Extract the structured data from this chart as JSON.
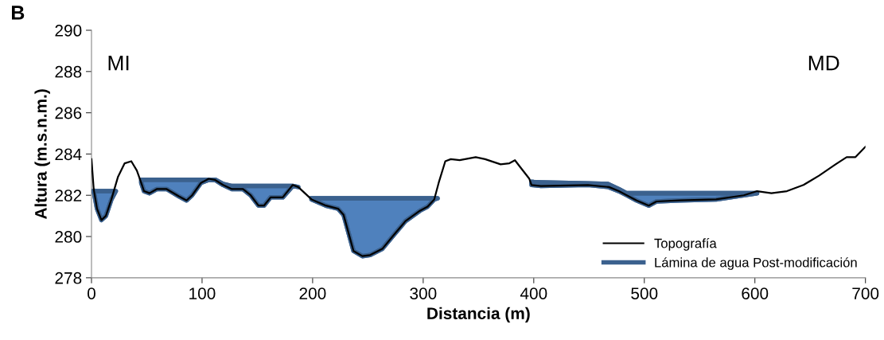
{
  "chart_data": {
    "type": "line",
    "xlabel": "Distancia (m)",
    "ylabel": "Altura (m.s.n.m.)",
    "xlim": [
      0,
      700
    ],
    "xticks": [
      0,
      100,
      200,
      300,
      400,
      500,
      600,
      700
    ],
    "ylim": [
      278,
      290
    ],
    "yticks": [
      278,
      280,
      282,
      284,
      286,
      288,
      290
    ],
    "grid": false,
    "legend": "bottom right",
    "marker": "none",
    "line_style": "solid",
    "annotations": [
      "B",
      "MI",
      "MD"
    ],
    "series": [
      {
        "name": "Topografía",
        "color": "#000000",
        "x": [
          0,
          2,
          5,
          9,
          13,
          18,
          24,
          30,
          36,
          41,
          45,
          47.5,
          52.5,
          59,
          68,
          79,
          86,
          91,
          99,
          106,
          111.5,
          119,
          127,
          137,
          144,
          151,
          156,
          162,
          173,
          182,
          187,
          199,
          212,
          223,
          228,
          237,
          245,
          252,
          263,
          273,
          284,
          297,
          304,
          310,
          314,
          320,
          325,
          333,
          347.5,
          356,
          370,
          378,
          383,
          388,
          396,
          398,
          406.5,
          449,
          468,
          477,
          493,
          504,
          511,
          532,
          565,
          590,
          602,
          615,
          629,
          644,
          658,
          673,
          683,
          691,
          700
        ],
        "values": [
          283.75,
          282.3,
          281.35,
          280.8,
          281.0,
          281.8,
          282.9,
          283.55,
          283.65,
          283.2,
          282.6,
          282.2,
          282.1,
          282.3,
          282.3,
          281.95,
          281.75,
          282.0,
          282.6,
          282.8,
          282.75,
          282.5,
          282.3,
          282.3,
          282.0,
          281.5,
          281.5,
          281.9,
          281.9,
          282.5,
          282.4,
          281.8,
          281.5,
          281.35,
          281.05,
          279.3,
          279.05,
          279.1,
          279.4,
          280.05,
          280.75,
          281.25,
          281.45,
          281.8,
          282.6,
          283.65,
          283.75,
          283.7,
          283.85,
          283.75,
          283.5,
          283.55,
          283.7,
          283.35,
          282.8,
          282.5,
          282.45,
          282.5,
          282.4,
          282.2,
          281.75,
          281.5,
          281.7,
          281.75,
          281.8,
          282.0,
          282.2,
          282.1,
          282.2,
          282.5,
          282.95,
          283.5,
          283.85,
          283.85,
          284.35
        ]
      },
      {
        "name": "Lámina de agua Post-modificación",
        "type": "area",
        "color": "#4f81bd",
        "x": [
          2,
          5,
          9,
          13,
          18,
          22,
          null,
          45,
          47.5,
          52.5,
          59,
          68,
          79,
          86,
          91,
          99,
          106,
          112,
          119,
          127,
          137,
          144,
          151,
          156,
          162,
          173,
          182,
          187,
          null,
          199,
          212,
          223,
          228,
          237,
          245,
          252,
          263,
          273,
          284,
          297,
          304,
          310,
          313,
          null,
          398,
          406.5,
          449,
          467,
          477,
          484,
          493,
          504,
          511,
          532,
          565,
          590,
          602
        ],
        "values": [
          282.2,
          282.2,
          282.2,
          282.2,
          282.2,
          282.2,
          null,
          282.75,
          282.75,
          282.75,
          282.75,
          282.75,
          282.75,
          282.75,
          282.75,
          282.75,
          282.75,
          282.75,
          282.55,
          282.45,
          282.45,
          282.45,
          282.45,
          282.45,
          282.45,
          282.45,
          282.45,
          282.4,
          null,
          281.85,
          281.85,
          281.85,
          281.85,
          281.85,
          281.85,
          281.85,
          281.85,
          281.85,
          281.85,
          281.85,
          281.85,
          281.85,
          281.85,
          null,
          282.65,
          282.63,
          282.58,
          282.55,
          282.3,
          282.1,
          282.1,
          282.1,
          282.1,
          282.1,
          282.1,
          282.1,
          282.1
        ]
      }
    ]
  }
}
